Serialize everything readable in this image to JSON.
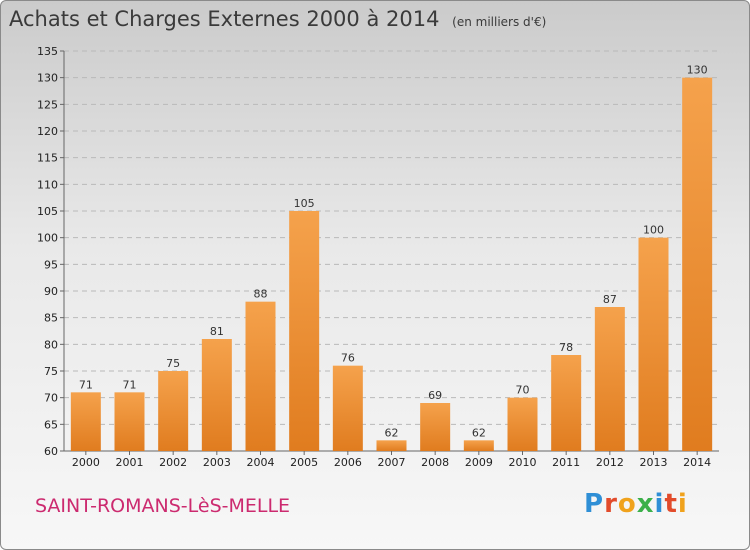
{
  "header": {
    "title": "Achats et Charges Externes 2000 à 2014",
    "subtitle": "(en milliers d'€)"
  },
  "footer": {
    "commune": "SAINT-ROMANS-LèS-MELLE",
    "logo_letters": [
      "P",
      "r",
      "o",
      "x",
      "i",
      "t",
      "i"
    ]
  },
  "colors": {
    "bar_light": "#f5a24c",
    "bar_dark": "#e07c1f",
    "commune": "#cc2a6f"
  },
  "chart_data": {
    "type": "bar",
    "title": "Achats et Charges Externes 2000 à 2014",
    "subtitle": "(en milliers d'€)",
    "categories": [
      "2000",
      "2001",
      "2002",
      "2003",
      "2004",
      "2005",
      "2006",
      "2007",
      "2008",
      "2009",
      "2010",
      "2011",
      "2012",
      "2013",
      "2014"
    ],
    "values": [
      71,
      71,
      75,
      81,
      88,
      105,
      76,
      62,
      69,
      62,
      70,
      78,
      87,
      100,
      130
    ],
    "ylim": [
      60,
      135
    ],
    "yticks": [
      60,
      65,
      70,
      75,
      80,
      85,
      90,
      95,
      100,
      105,
      110,
      115,
      120,
      125,
      130,
      135
    ],
    "grid": true,
    "data_labels": true
  }
}
